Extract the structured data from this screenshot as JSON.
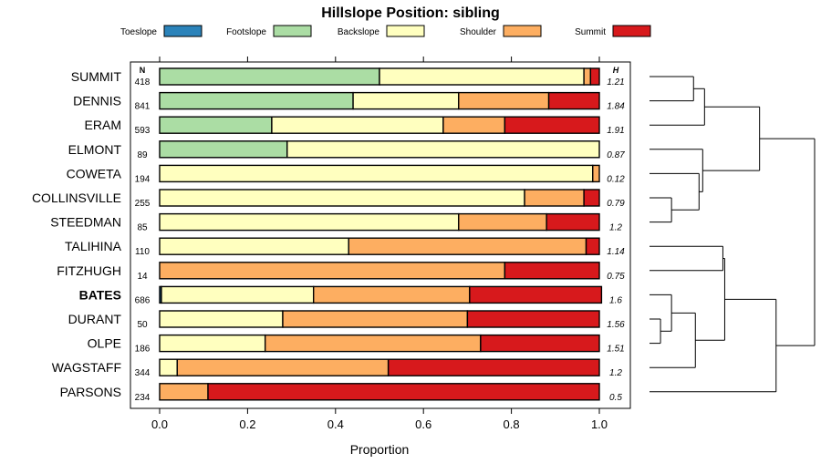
{
  "chart_data": {
    "type": "bar",
    "orientation": "horizontal",
    "stacked": true,
    "title": "Hillslope Position: sibling",
    "xlabel": "Proportion",
    "xlim": [
      0,
      1
    ],
    "xticks": [
      "0.0",
      "0.2",
      "0.4",
      "0.6",
      "0.8",
      "1.0"
    ],
    "n_header": "N",
    "h_header": "H",
    "legend_position": "top",
    "highlight_category": "BATES",
    "legend": [
      {
        "name": "Toeslope",
        "color": "#2b83ba"
      },
      {
        "name": "Footslope",
        "color": "#abdda4"
      },
      {
        "name": "Backslope",
        "color": "#ffffbf"
      },
      {
        "name": "Shoulder",
        "color": "#fdae61"
      },
      {
        "name": "Summit",
        "color": "#d7191c"
      }
    ],
    "categories": [
      "SUMMIT",
      "DENNIS",
      "ERAM",
      "ELMONT",
      "COWETA",
      "COLLINSVILLE",
      "STEEDMAN",
      "TALIHINA",
      "FITZHUGH",
      "BATES",
      "DURANT",
      "OLPE",
      "WAGSTAFF",
      "PARSONS"
    ],
    "n": [
      "418",
      "841",
      "593",
      "89",
      "194",
      "255",
      "85",
      "110",
      "14",
      "686",
      "50",
      "186",
      "344",
      "234"
    ],
    "h": [
      "1.21",
      "1.84",
      "1.91",
      "0.87",
      "0.12",
      "0.79",
      "1.2",
      "1.14",
      "0.75",
      "1.6",
      "1.56",
      "1.51",
      "1.2",
      "0.5"
    ],
    "series": [
      {
        "name": "Toeslope",
        "values": [
          0.0,
          0.0,
          0.0,
          0.0,
          0.0,
          0.0,
          0.0,
          0.0,
          0.0,
          0.004,
          0.0,
          0.0,
          0.0,
          0.0
        ]
      },
      {
        "name": "Footslope",
        "values": [
          0.5,
          0.44,
          0.255,
          0.29,
          0.0,
          0.0,
          0.0,
          0.0,
          0.0,
          0.0,
          0.0,
          0.0,
          0.0,
          0.0
        ]
      },
      {
        "name": "Backslope",
        "values": [
          0.465,
          0.24,
          0.39,
          0.71,
          0.985,
          0.83,
          0.68,
          0.43,
          0.0,
          0.346,
          0.28,
          0.24,
          0.04,
          0.0
        ]
      },
      {
        "name": "Shoulder",
        "values": [
          0.015,
          0.205,
          0.14,
          0.0,
          0.015,
          0.135,
          0.2,
          0.54,
          0.785,
          0.355,
          0.42,
          0.49,
          0.48,
          0.11
        ]
      },
      {
        "name": "Summit",
        "values": [
          0.02,
          0.115,
          0.215,
          0.0,
          0.0,
          0.035,
          0.12,
          0.03,
          0.215,
          0.3,
          0.3,
          0.27,
          0.48,
          0.89
        ]
      }
    ],
    "dendrogram": {
      "leaf_order": [
        "SUMMIT",
        "DENNIS",
        "ERAM",
        "ELMONT",
        "COWETA",
        "COLLINSVILLE",
        "STEEDMAN",
        "TALIHINA",
        "FITZHUGH",
        "BATES",
        "DURANT",
        "OLPE",
        "WAGSTAFF",
        "PARSONS"
      ],
      "merges": [
        {
          "left": "leaf:SUMMIT",
          "right": "leaf:DENNIS",
          "height": 0.24
        },
        {
          "left": "leaf:ERAM",
          "right": "m0",
          "height": 0.3
        },
        {
          "left": "leaf:COLLINSVILLE",
          "right": "leaf:STEEDMAN",
          "height": 0.12
        },
        {
          "left": "leaf:COWETA",
          "right": "m2",
          "height": 0.27
        },
        {
          "left": "leaf:ELMONT",
          "right": "m3",
          "height": 0.29
        },
        {
          "left": "m1",
          "right": "m4",
          "height": 0.6
        },
        {
          "left": "leaf:DURANT",
          "right": "leaf:OLPE",
          "height": 0.06
        },
        {
          "left": "leaf:BATES",
          "right": "m6",
          "height": 0.12
        },
        {
          "left": "m7",
          "right": "leaf:WAGSTAFF",
          "height": 0.25
        },
        {
          "left": "leaf:TALIHINA",
          "right": "leaf:FITZHUGH",
          "height": 0.4
        },
        {
          "left": "m9",
          "right": "m8",
          "height": 0.41
        },
        {
          "left": "m10",
          "right": "leaf:PARSONS",
          "height": 0.69
        },
        {
          "left": "m5",
          "right": "m11",
          "height": 0.9
        }
      ]
    }
  }
}
